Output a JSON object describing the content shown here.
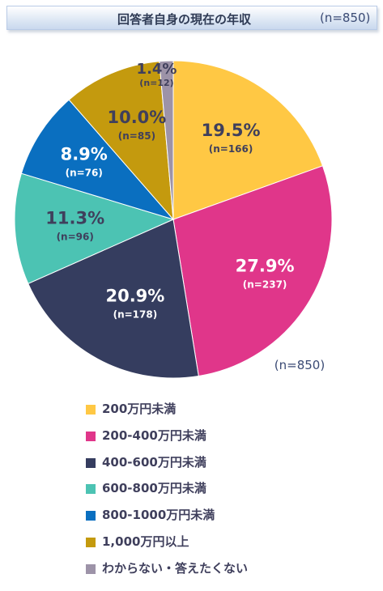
{
  "header": {
    "title": "回答者自身の現在の年収",
    "n_label": "(n=850)"
  },
  "chart_data": {
    "type": "pie",
    "title": "回答者自身の現在の年収",
    "total_label": "(n=850)",
    "slices": [
      {
        "label": "200万円未満",
        "percent": 19.5,
        "pct_label": "19.5%",
        "n_label": "(n=166)",
        "color": "#ffc844",
        "text_color": "#3f3f5c"
      },
      {
        "label": "200-400万円未満",
        "percent": 27.9,
        "pct_label": "27.9%",
        "n_label": "(n=237)",
        "color": "#e0368a",
        "text_color": "#ffffff"
      },
      {
        "label": "400-600万円未満",
        "percent": 20.9,
        "pct_label": "20.9%",
        "n_label": "(n=178)",
        "color": "#353d5f",
        "text_color": "#ffffff"
      },
      {
        "label": "600-800万円未満",
        "percent": 11.3,
        "pct_label": "11.3%",
        "n_label": "(n=96)",
        "color": "#4cc3b3",
        "text_color": "#3f3f5c"
      },
      {
        "label": "800-1000万円未満",
        "percent": 8.9,
        "pct_label": "8.9%",
        "n_label": "(n=76)",
        "color": "#0a6fc0",
        "text_color": "#ffffff"
      },
      {
        "label": "1,000万円以上",
        "percent": 10.0,
        "pct_label": "10.0%",
        "n_label": "(n=85)",
        "color": "#c49a0e",
        "text_color": "#3f3f5c"
      },
      {
        "label": "わからない・答えたくない",
        "percent": 1.4,
        "pct_label": "1.4%",
        "n_label": "(n=12)",
        "color": "#9d93a8",
        "text_color": "#3f3f5c"
      }
    ],
    "legend_placement": "bottom"
  }
}
